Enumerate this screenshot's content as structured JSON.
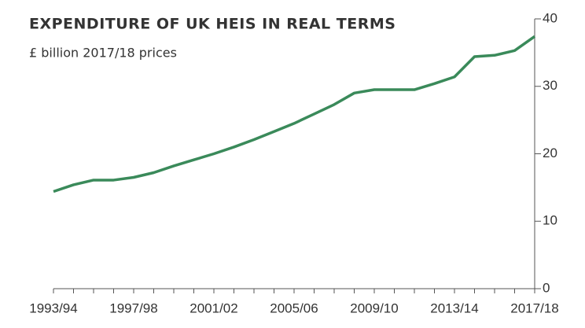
{
  "chart_data": {
    "type": "line",
    "title": "EXPENDITURE OF UK HEIS IN REAL TERMS",
    "subtitle": "£ billion 2017/18 prices",
    "categories": [
      "1993/94",
      null,
      null,
      null,
      "1997/98",
      null,
      null,
      null,
      "2001/02",
      null,
      null,
      null,
      "2005/06",
      null,
      null,
      null,
      "2009/10",
      null,
      null,
      null,
      "2013/14",
      null,
      null,
      null,
      "2017/18"
    ],
    "values": [
      14.4,
      15.4,
      16.1,
      16.1,
      16.5,
      17.2,
      18.2,
      19.1,
      20.0,
      21.0,
      22.1,
      23.3,
      24.5,
      25.9,
      27.3,
      29.0,
      29.5,
      29.5,
      29.5,
      30.4,
      31.4,
      34.4,
      34.6,
      35.3,
      37.4
    ],
    "color": "#3a8a5a",
    "ylim": [
      0,
      40
    ],
    "yticks": [
      0,
      10,
      20,
      30,
      40
    ],
    "y_axis_side": "right"
  }
}
